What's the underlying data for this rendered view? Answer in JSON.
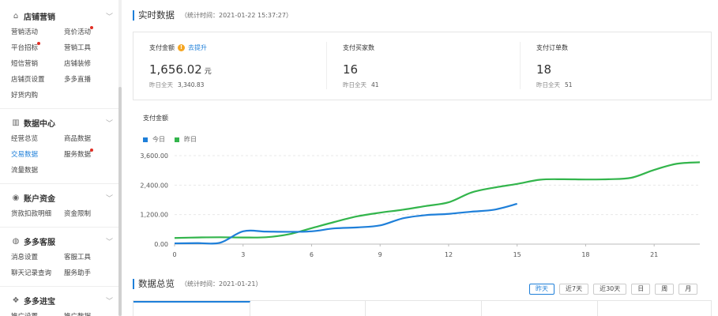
{
  "sidebar": {
    "sections": [
      {
        "title": "店铺营销",
        "icon": "shop-icon",
        "rows": [
          [
            "营销活动",
            "竞价活动"
          ],
          [
            "平台招标",
            "营销工具"
          ],
          [
            "短信营销",
            "店铺装修"
          ],
          [
            "店铺页设置",
            "多多直播"
          ],
          [
            "好货内购",
            ""
          ]
        ]
      },
      {
        "title": "数据中心",
        "icon": "bar-chart-icon",
        "rows": [
          [
            "经营总览",
            "商品数据"
          ],
          [
            "交易数据",
            "服务数据"
          ],
          [
            "流量数据",
            ""
          ]
        ]
      },
      {
        "title": "账户资金",
        "icon": "wallet-icon",
        "rows": [
          [
            "货款扣款明细",
            "资金限制"
          ]
        ]
      },
      {
        "title": "多多客服",
        "icon": "headset-icon",
        "rows": [
          [
            "消息设置",
            "客服工具"
          ],
          [
            "聊天记录查询",
            "服务助手"
          ]
        ]
      },
      {
        "title": "多多进宝",
        "icon": "treasure-icon",
        "rows": [
          [
            "推广设置",
            "推广数据"
          ]
        ]
      }
    ]
  },
  "header": {
    "title": "实时数据",
    "stat_time": "（统计时间：2021-01-22 15:37:27）"
  },
  "kpis": [
    {
      "label": "支付金额",
      "link": "去提升",
      "value": "1,656.02",
      "unit": "元",
      "yesterday_label": "昨日全天",
      "yesterday_value": "3,340.83"
    },
    {
      "label": "支付买家数",
      "link": "",
      "value": "16",
      "unit": "",
      "yesterday_label": "昨日全天",
      "yesterday_value": "41"
    },
    {
      "label": "支付订单数",
      "link": "",
      "value": "18",
      "unit": "",
      "yesterday_label": "昨日全天",
      "yesterday_value": "51"
    }
  ],
  "chart_data": {
    "type": "line",
    "title": "支付金额",
    "xlabel": "",
    "ylabel": "",
    "x_ticks": [
      0,
      3,
      6,
      9,
      12,
      15,
      18,
      21
    ],
    "y_ticks": [
      "0.00",
      "1,200.00",
      "2,400.00",
      "3,600.00"
    ],
    "xlim": [
      0,
      23.0
    ],
    "ylim": [
      0,
      3600
    ],
    "grid": true,
    "legend_position": "top-left",
    "series": [
      {
        "name": "今日",
        "color": "#1e7fd9",
        "x": [
          0,
          1,
          2,
          3,
          4,
          5,
          6,
          7,
          8,
          9,
          10,
          11,
          12,
          13,
          14,
          15
        ],
        "y": [
          30,
          40,
          60,
          520,
          510,
          500,
          520,
          640,
          680,
          760,
          1050,
          1180,
          1230,
          1320,
          1400,
          1640
        ]
      },
      {
        "name": "昨日",
        "color": "#33b54c",
        "x": [
          0,
          1,
          2,
          3,
          4,
          5,
          6,
          7,
          8,
          9,
          10,
          11,
          12,
          13,
          14,
          15,
          16,
          17,
          18,
          19,
          20,
          21,
          22,
          23
        ],
        "y": [
          250,
          270,
          280,
          270,
          280,
          400,
          650,
          900,
          1130,
          1280,
          1400,
          1550,
          1700,
          2100,
          2300,
          2450,
          2620,
          2640,
          2630,
          2640,
          2700,
          3020,
          3270,
          3330
        ]
      }
    ]
  },
  "overview": {
    "title": "数据总览",
    "stat_time": "（统计时间：2021-01-21）",
    "ranges": [
      "昨天",
      "近7天",
      "近30天",
      "日",
      "周",
      "月"
    ]
  }
}
